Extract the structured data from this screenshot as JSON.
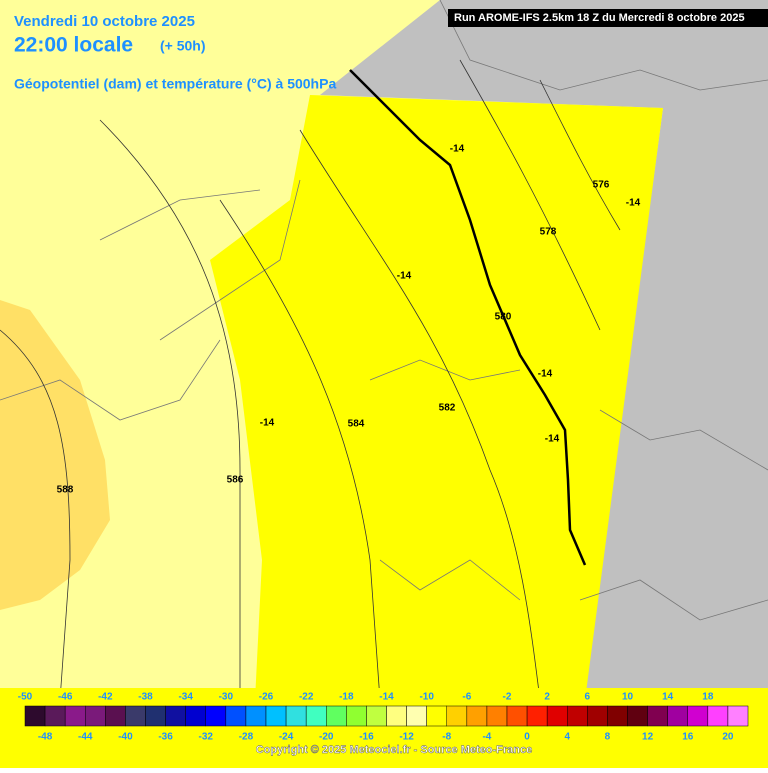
{
  "header": {
    "date": "Vendredi 10 octobre 2025",
    "time": "22:00 locale",
    "lead": "(+ 50h)",
    "field": "Géopotentiel (dam) et température (°C) à 500hPa",
    "run": "Run AROME-IFS 2.5km 18 Z du Mercredi 8 octobre 2025"
  },
  "map_labels": [
    "-14",
    "576",
    "-14",
    "578",
    "-14",
    "580",
    "-14",
    "582",
    "-14",
    "-14",
    "584",
    "586",
    "588"
  ],
  "legend": {
    "values": [
      -50,
      -48,
      -46,
      -44,
      -42,
      -40,
      -38,
      -36,
      -34,
      -32,
      -30,
      -28,
      -26,
      -24,
      -22,
      -20,
      -18,
      -16,
      -14,
      -12,
      -10,
      -8,
      -6,
      -4,
      -2,
      0,
      2,
      4,
      6,
      8,
      10,
      12,
      14,
      16,
      18,
      20
    ],
    "colors": [
      "#2d0a2d",
      "#5a1a5a",
      "#8a1a8a",
      "#7a1a7a",
      "#5a1050",
      "#3a3a6a",
      "#203070",
      "#1010a0",
      "#0000d0",
      "#0000ff",
      "#0050ff",
      "#0090ff",
      "#00c0ff",
      "#30e0e0",
      "#40ffc0",
      "#60ff60",
      "#90ff30",
      "#c0ff40",
      "#ffff80",
      "#ffffb0",
      "#ffff00",
      "#ffd000",
      "#ffa000",
      "#ff8000",
      "#ff5000",
      "#ff2000",
      "#e00000",
      "#c00000",
      "#a00000",
      "#800000",
      "#600010",
      "#800050",
      "#a000a0",
      "#d000d0",
      "#ff40ff",
      "#ff80ff"
    ]
  },
  "footer": "Copyright © 2025 Meteociel.fr - Source Meteo-France"
}
